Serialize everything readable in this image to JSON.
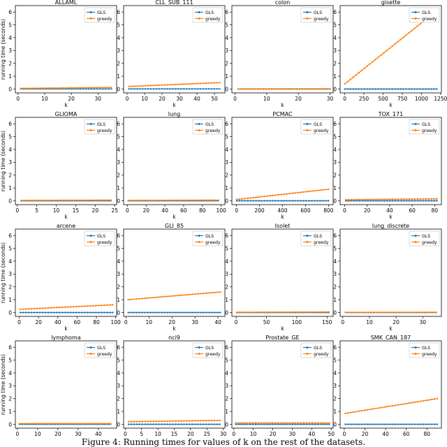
{
  "caption": "Figure 4: Running times for values of k on the rest of the datasets.",
  "colors": {
    "GLS": "#1f77b4",
    "greedy": "#ff7f0e"
  },
  "legend": [
    "GLS",
    "greedy"
  ],
  "chart_data": [
    {
      "type": "line",
      "title": "ALLAML",
      "xlabel": "k",
      "ylabel": "running time (seconds)",
      "xlim": [
        -1,
        37
      ],
      "ylim": [
        -0.3,
        6.5
      ],
      "xticks": [
        0,
        10,
        20,
        30
      ],
      "yticks": [
        0,
        1,
        2,
        3,
        4,
        5,
        6
      ],
      "grid": false,
      "legend_position": "top-right",
      "series": [
        {
          "name": "GLS",
          "x_range": [
            1,
            35
          ],
          "y": [
            0.01,
            0.01
          ]
        },
        {
          "name": "greedy",
          "x_range": [
            1,
            35
          ],
          "y": [
            0.05,
            0.12
          ]
        }
      ]
    },
    {
      "type": "line",
      "title": "CLL_SUB_111",
      "xlabel": "k",
      "ylabel": "",
      "xlim": [
        -2,
        56
      ],
      "ylim": [
        -0.3,
        6.5
      ],
      "xticks": [
        0,
        10,
        20,
        30,
        40,
        50
      ],
      "yticks": [
        0,
        1,
        2,
        3,
        4,
        5,
        6
      ],
      "grid": false,
      "legend_position": "top-right",
      "series": [
        {
          "name": "GLS",
          "x_range": [
            1,
            53
          ],
          "y": [
            0.01,
            0.01
          ]
        },
        {
          "name": "greedy",
          "x_range": [
            1,
            53
          ],
          "y": [
            0.2,
            0.5
          ]
        }
      ]
    },
    {
      "type": "line",
      "title": "colon",
      "xlabel": "k",
      "ylabel": "",
      "xlim": [
        -1,
        31
      ],
      "ylim": [
        -0.3,
        6.5
      ],
      "xticks": [
        0,
        10,
        20,
        30
      ],
      "yticks": [
        0,
        1,
        2,
        3,
        4,
        5,
        6
      ],
      "grid": false,
      "legend_position": "top-right",
      "series": [
        {
          "name": "GLS",
          "x_range": [
            1,
            30
          ],
          "y": [
            0.0,
            0.0
          ]
        },
        {
          "name": "greedy",
          "x_range": [
            1,
            30
          ],
          "y": [
            0.01,
            0.02
          ]
        }
      ]
    },
    {
      "type": "line",
      "title": "gisette",
      "xlabel": "k",
      "ylabel": "",
      "xlim": [
        -60,
        1260
      ],
      "ylim": [
        -0.3,
        6.5
      ],
      "xticks": [
        0,
        250,
        500,
        750,
        1000,
        1250
      ],
      "yticks": [
        0,
        1,
        2,
        3,
        4,
        5,
        6
      ],
      "grid": false,
      "legend_position": "top-right",
      "series": [
        {
          "name": "GLS",
          "x_range": [
            1,
            1200
          ],
          "y": [
            0.0,
            0.0
          ]
        },
        {
          "name": "greedy",
          "x_range": [
            1,
            1200
          ],
          "y": [
            0.4,
            6.1
          ]
        }
      ]
    },
    {
      "type": "line",
      "title": "GLIOMA",
      "xlabel": "k",
      "ylabel": "running time (seconds)",
      "xlim": [
        -0.5,
        25.5
      ],
      "ylim": [
        -0.3,
        6.5
      ],
      "xticks": [
        0,
        5,
        10,
        15,
        20,
        25
      ],
      "yticks": [
        0,
        1,
        2,
        3,
        4,
        5,
        6
      ],
      "grid": false,
      "legend_position": "top-right",
      "series": [
        {
          "name": "GLS",
          "x_range": [
            1,
            24
          ],
          "y": [
            0.0,
            0.0
          ]
        },
        {
          "name": "greedy",
          "x_range": [
            1,
            24
          ],
          "y": [
            0.03,
            0.05
          ]
        }
      ]
    },
    {
      "type": "line",
      "title": "lung",
      "xlabel": "k",
      "ylabel": "",
      "xlim": [
        -4,
        104
      ],
      "ylim": [
        -0.3,
        6.5
      ],
      "xticks": [
        0,
        20,
        40,
        60,
        80,
        100
      ],
      "yticks": [
        0,
        1,
        2,
        3,
        4,
        5,
        6
      ],
      "grid": false,
      "legend_position": "top-right",
      "series": [
        {
          "name": "GLS",
          "x_range": [
            1,
            97
          ],
          "y": [
            0.0,
            0.0
          ]
        },
        {
          "name": "greedy",
          "x_range": [
            1,
            97
          ],
          "y": [
            0.03,
            0.05
          ]
        }
      ]
    },
    {
      "type": "line",
      "title": "PCMAC",
      "xlabel": "k",
      "ylabel": "",
      "xlim": [
        -40,
        840
      ],
      "ylim": [
        -0.3,
        6.5
      ],
      "xticks": [
        0,
        200,
        400,
        600,
        800
      ],
      "yticks": [
        0,
        1,
        2,
        3,
        4,
        5,
        6
      ],
      "grid": false,
      "legend_position": "top-right",
      "series": [
        {
          "name": "GLS",
          "x_range": [
            1,
            800
          ],
          "y": [
            0.0,
            0.0
          ]
        },
        {
          "name": "greedy",
          "x_range": [
            1,
            800
          ],
          "y": [
            0.1,
            0.9
          ]
        }
      ]
    },
    {
      "type": "line",
      "title": "TOX_171",
      "xlabel": "k",
      "ylabel": "",
      "xlim": [
        -4,
        86
      ],
      "ylim": [
        -0.3,
        6.5
      ],
      "xticks": [
        0,
        20,
        40,
        60,
        80
      ],
      "yticks": [
        0,
        1,
        2,
        3,
        4,
        5,
        6
      ],
      "grid": false,
      "legend_position": "top-right",
      "series": [
        {
          "name": "GLS",
          "x_range": [
            1,
            82
          ],
          "y": [
            0.0,
            0.0
          ]
        },
        {
          "name": "greedy",
          "x_range": [
            1,
            82
          ],
          "y": [
            0.08,
            0.15
          ]
        }
      ]
    },
    {
      "type": "line",
      "title": "arcene",
      "xlabel": "k",
      "ylabel": "running time (seconds)",
      "xlim": [
        -4,
        101
      ],
      "ylim": [
        -0.3,
        6.5
      ],
      "xticks": [
        0,
        20,
        40,
        60,
        80,
        100
      ],
      "yticks": [
        0,
        1,
        2,
        3,
        4,
        5,
        6
      ],
      "grid": false,
      "legend_position": "top-right",
      "series": [
        {
          "name": "GLS",
          "x_range": [
            1,
            97
          ],
          "y": [
            0.0,
            0.0
          ]
        },
        {
          "name": "greedy",
          "x_range": [
            1,
            97
          ],
          "y": [
            0.25,
            0.6
          ]
        }
      ]
    },
    {
      "type": "line",
      "title": "GLI_85",
      "xlabel": "k",
      "ylabel": "",
      "xlim": [
        -1,
        43
      ],
      "ylim": [
        -0.3,
        6.5
      ],
      "xticks": [
        0,
        10,
        20,
        30,
        40
      ],
      "yticks": [
        0,
        1,
        2,
        3,
        4,
        5,
        6
      ],
      "grid": false,
      "legend_position": "top-right",
      "series": [
        {
          "name": "GLS",
          "x_range": [
            1,
            41
          ],
          "y": [
            0.0,
            0.0
          ]
        },
        {
          "name": "greedy",
          "x_range": [
            1,
            41
          ],
          "y": [
            1.0,
            1.6
          ]
        }
      ]
    },
    {
      "type": "line",
      "title": "Isolet",
      "xlabel": "k",
      "ylabel": "",
      "xlim": [
        -7,
        160
      ],
      "ylim": [
        -0.3,
        6.5
      ],
      "xticks": [
        0,
        50,
        100,
        150
      ],
      "yticks": [
        0,
        1,
        2,
        3,
        4,
        5,
        6
      ],
      "grid": false,
      "legend_position": "top-right",
      "series": [
        {
          "name": "GLS",
          "x_range": [
            1,
            153
          ],
          "y": [
            0.0,
            0.0
          ]
        },
        {
          "name": "greedy",
          "x_range": [
            1,
            153
          ],
          "y": [
            0.02,
            0.04
          ]
        }
      ]
    },
    {
      "type": "line",
      "title": "lung_discrete",
      "xlabel": "k",
      "ylabel": "",
      "xlim": [
        -1,
        37
      ],
      "ylim": [
        -0.3,
        6.5
      ],
      "xticks": [
        0,
        10,
        20,
        30
      ],
      "yticks": [
        0,
        1,
        2,
        3,
        4,
        5,
        6
      ],
      "grid": false,
      "legend_position": "top-right",
      "series": [
        {
          "name": "GLS",
          "x_range": [
            1,
            35
          ],
          "y": [
            0.0,
            0.0
          ]
        },
        {
          "name": "greedy",
          "x_range": [
            1,
            35
          ],
          "y": [
            0.01,
            0.02
          ]
        }
      ]
    },
    {
      "type": "line",
      "title": "lymphoma",
      "xlabel": "k",
      "ylabel": "running time (seconds)",
      "xlim": [
        -1,
        49
      ],
      "ylim": [
        -0.3,
        6.5
      ],
      "xticks": [
        0,
        10,
        20,
        30,
        40
      ],
      "yticks": [
        0,
        1,
        2,
        3,
        4,
        5,
        6
      ],
      "grid": false,
      "legend_position": "top-right",
      "series": [
        {
          "name": "GLS",
          "x_range": [
            1,
            46
          ],
          "y": [
            0.0,
            0.0
          ]
        },
        {
          "name": "greedy",
          "x_range": [
            1,
            46
          ],
          "y": [
            0.05,
            0.05
          ]
        }
      ]
    },
    {
      "type": "line",
      "title": "nci9",
      "xlabel": "k",
      "ylabel": "",
      "xlim": [
        -0.5,
        30.5
      ],
      "ylim": [
        -0.3,
        6.5
      ],
      "xticks": [
        0,
        5,
        10,
        15,
        20,
        25,
        30
      ],
      "yticks": [
        0,
        1,
        2,
        3,
        4,
        5,
        6
      ],
      "grid": false,
      "legend_position": "top-right",
      "series": [
        {
          "name": "GLS",
          "x_range": [
            1,
            29
          ],
          "y": [
            0.0,
            0.0
          ]
        },
        {
          "name": "greedy",
          "x_range": [
            1,
            29
          ],
          "y": [
            0.2,
            0.3
          ]
        }
      ]
    },
    {
      "type": "line",
      "title": "Prostate_GE",
      "xlabel": "k",
      "ylabel": "",
      "xlim": [
        -1,
        51
      ],
      "ylim": [
        -0.3,
        6.5
      ],
      "xticks": [
        0,
        10,
        20,
        30,
        40,
        50
      ],
      "yticks": [
        0,
        1,
        2,
        3,
        4,
        5,
        6
      ],
      "grid": false,
      "legend_position": "top-right",
      "series": [
        {
          "name": "GLS",
          "x_range": [
            1,
            49
          ],
          "y": [
            0.0,
            0.0
          ]
        },
        {
          "name": "greedy",
          "x_range": [
            1,
            49
          ],
          "y": [
            0.1,
            0.1
          ]
        }
      ]
    },
    {
      "type": "line",
      "title": "SMK_CAN_187",
      "xlabel": "k",
      "ylabel": "",
      "xlim": [
        -4,
        94
      ],
      "ylim": [
        -0.3,
        6.5
      ],
      "xticks": [
        0,
        20,
        40,
        60,
        80
      ],
      "yticks": [
        0,
        1,
        2,
        3,
        4,
        5,
        6
      ],
      "grid": false,
      "legend_position": "top-right",
      "series": [
        {
          "name": "GLS",
          "x_range": [
            1,
            90
          ],
          "y": [
            0.0,
            0.0
          ]
        },
        {
          "name": "greedy",
          "x_range": [
            1,
            90
          ],
          "y": [
            0.85,
            2.0
          ]
        }
      ]
    }
  ]
}
